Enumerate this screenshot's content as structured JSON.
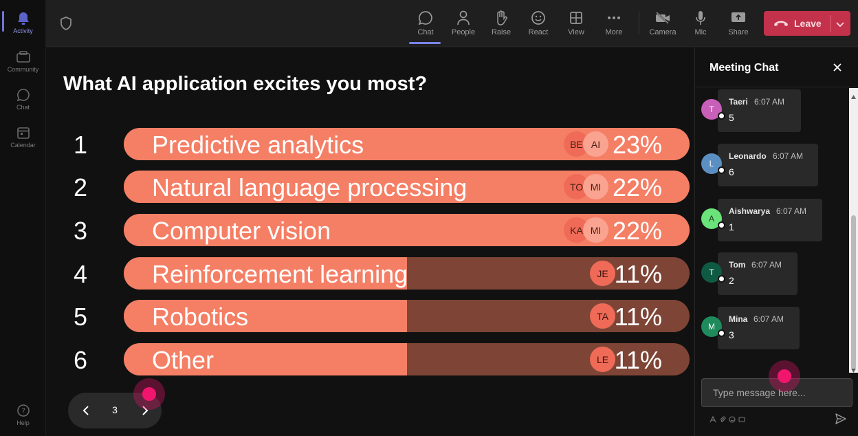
{
  "rail": {
    "items": [
      {
        "label": "Activity",
        "icon": "bell-icon"
      },
      {
        "label": "Community",
        "icon": "community-icon"
      },
      {
        "label": "Chat",
        "icon": "chat-icon"
      },
      {
        "label": "Calendar",
        "icon": "calendar-icon"
      }
    ],
    "help_label": "Help"
  },
  "toolbar": {
    "chat": "Chat",
    "people": "People",
    "raise": "Raise",
    "react": "React",
    "view": "View",
    "more": "More",
    "camera": "Camera",
    "mic": "Mic",
    "share": "Share",
    "leave": "Leave"
  },
  "poll": {
    "question": "What AI application excites you most?",
    "options": [
      {
        "rank": "1",
        "label": "Predictive analytics",
        "percent_label": "23%",
        "fill": 1.0,
        "avatars": [
          "BE",
          "AI"
        ]
      },
      {
        "rank": "2",
        "label": "Natural language processing",
        "percent_label": "22%",
        "fill": 1.0,
        "avatars": [
          "TO",
          "MI"
        ]
      },
      {
        "rank": "3",
        "label": "Computer vision",
        "percent_label": "22%",
        "fill": 1.0,
        "avatars": [
          "KA",
          "MI"
        ]
      },
      {
        "rank": "4",
        "label": "Reinforcement learning",
        "percent_label": "11%",
        "fill": 0.5,
        "avatars": [
          "JE"
        ]
      },
      {
        "rank": "5",
        "label": "Robotics",
        "percent_label": "11%",
        "fill": 0.5,
        "avatars": [
          "TA"
        ]
      },
      {
        "rank": "6",
        "label": "Other",
        "percent_label": "11%",
        "fill": 0.5,
        "avatars": [
          "LE"
        ]
      }
    ],
    "page": "3"
  },
  "chat": {
    "title": "Meeting Chat",
    "messages": [
      {
        "initial": "T",
        "name": "Taeri",
        "time": "6:07 AM",
        "text": "5",
        "color": "#c85fb8"
      },
      {
        "initial": "L",
        "name": "Leonardo",
        "time": "6:07 AM",
        "text": "6",
        "color": "#5b8fc1"
      },
      {
        "initial": "A",
        "name": "Aishwarya",
        "time": "6:07 AM",
        "text": "1",
        "color": "#6ae37a"
      },
      {
        "initial": "T",
        "name": "Tom",
        "time": "6:07 AM",
        "text": "2",
        "color": "#0f5a43"
      },
      {
        "initial": "M",
        "name": "Mina",
        "time": "6:07 AM",
        "text": "3",
        "color": "#1f8a5c"
      }
    ],
    "placeholder": "Type message here..."
  },
  "colors": {
    "bar_fill": "#f57f65",
    "bar_track": "#7e4536",
    "leave": "#c4314b",
    "accent": "#7b83eb"
  }
}
